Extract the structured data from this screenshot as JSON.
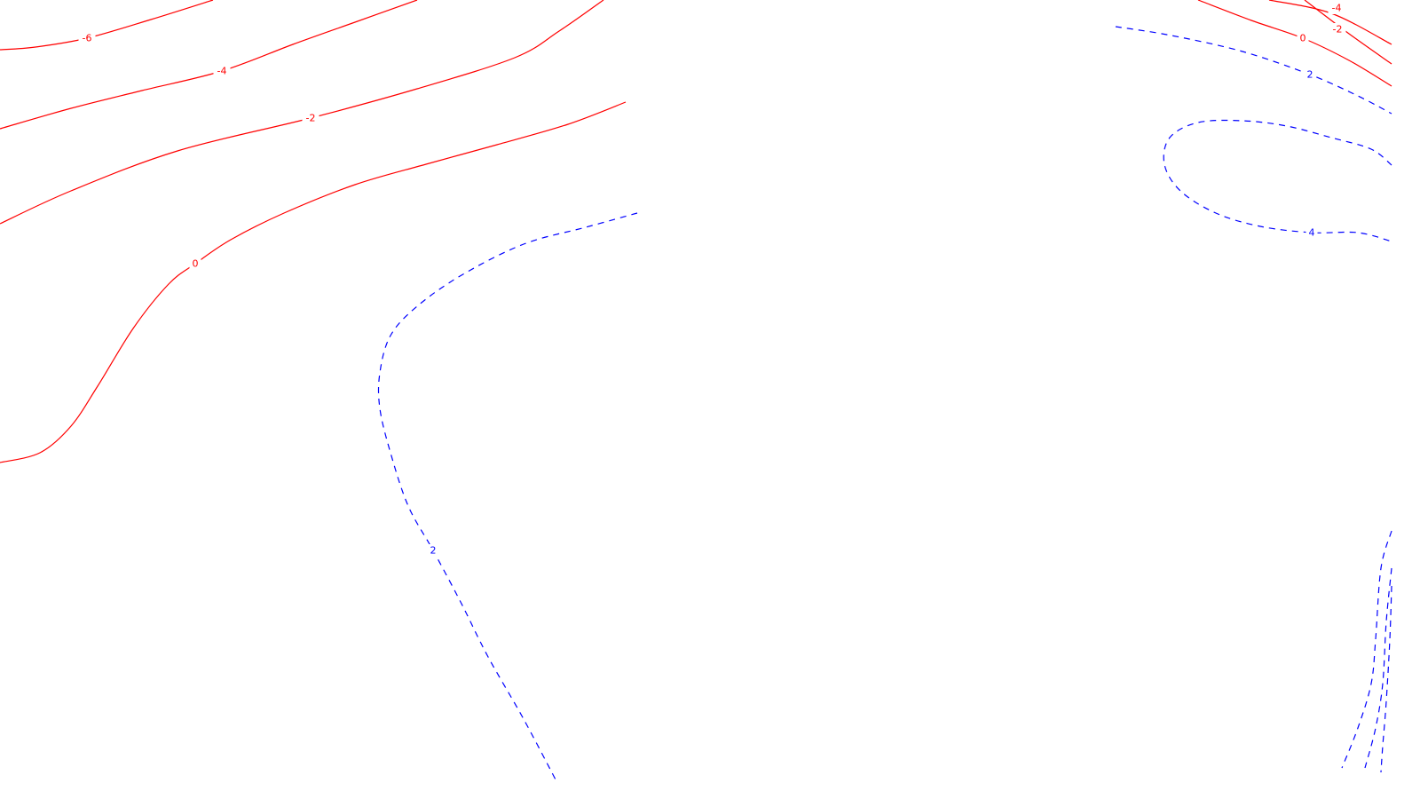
{
  "chart_data": {
    "type": "contour",
    "title": "",
    "xlabel": "",
    "ylabel": "",
    "grid": false,
    "legend": "none",
    "colors": {
      "negative_and_zero": "#ff0000",
      "positive": "#0000ff",
      "background": "#ffffff"
    },
    "line_styles": {
      "negative_and_zero": "solid",
      "positive": "dashed"
    },
    "levels": [
      {
        "level": -6,
        "color": "#ff0000",
        "style": "solid",
        "lines": [
          {
            "points": [
              [
                0,
                56
              ],
              [
                40,
                53
              ],
              [
                98,
                43
              ],
              [
                170,
                22
              ],
              [
                240,
                0
              ]
            ],
            "labels": [
              {
                "text": "-6",
                "at": [
                  98,
                  43
                ]
              }
            ]
          }
        ]
      },
      {
        "level": -4,
        "color": "#ff0000",
        "style": "solid",
        "lines": [
          {
            "points": [
              [
                0,
                145
              ],
              [
                80,
                122
              ],
              [
                160,
                102
              ],
              [
                250,
                80
              ],
              [
                330,
                50
              ],
              [
                400,
                25
              ],
              [
                470,
                0
              ]
            ],
            "labels": [
              {
                "text": "-4",
                "at": [
                  250,
                  80
                ]
              }
            ]
          },
          {
            "points": [
              [
                1430,
                0
              ],
              [
                1500,
                15
              ],
              [
                1568,
                50
              ]
            ],
            "labels": [
              {
                "text": "-4",
                "at": [
                  1506,
                  9
                ]
              }
            ]
          }
        ]
      },
      {
        "level": -2,
        "color": "#ff0000",
        "style": "solid",
        "lines": [
          {
            "points": [
              [
                0,
                252
              ],
              [
                80,
                215
              ],
              [
                200,
                170
              ],
              [
                350,
                133
              ],
              [
                470,
                100
              ],
              [
                580,
                65
              ],
              [
                630,
                35
              ],
              [
                680,
                0
              ]
            ],
            "labels": [
              {
                "text": "-2",
                "at": [
                  350,
                  133
                ]
              }
            ]
          },
          {
            "points": [
              [
                1470,
                0
              ],
              [
                1520,
                38
              ],
              [
                1568,
                72
              ]
            ],
            "labels": [
              {
                "text": "-2",
                "at": [
                  1507,
                  33
                ]
              }
            ]
          }
        ]
      },
      {
        "level": 0,
        "color": "#ff0000",
        "style": "solid",
        "lines": [
          {
            "points": [
              [
                0,
                521
              ],
              [
                45,
                510
              ],
              [
                80,
                480
              ],
              [
                110,
                435
              ],
              [
                150,
                370
              ],
              [
                190,
                320
              ],
              [
                220,
                297
              ],
              [
                260,
                270
              ],
              [
                320,
                240
              ],
              [
                400,
                208
              ],
              [
                480,
                185
              ],
              [
                560,
                163
              ],
              [
                640,
                140
              ],
              [
                705,
                115
              ]
            ],
            "labels": [
              {
                "text": "0",
                "at": [
                  220,
                  297
                ]
              }
            ]
          },
          {
            "points": [
              [
                1350,
                0
              ],
              [
                1410,
                23
              ],
              [
                1468,
                43
              ],
              [
                1520,
                68
              ],
              [
                1568,
                97
              ]
            ],
            "labels": [
              {
                "text": "0",
                "at": [
                  1468,
                  43
                ]
              }
            ]
          }
        ]
      },
      {
        "level": 2,
        "color": "#0000ff",
        "style": "dashed",
        "lines": [
          {
            "points": [
              [
                718,
                240
              ],
              [
                660,
                256
              ],
              [
                590,
                275
              ],
              [
                520,
                310
              ],
              [
                470,
                345
              ],
              [
                440,
                378
              ],
              [
                428,
                420
              ],
              [
                428,
                460
              ],
              [
                440,
                510
              ],
              [
                460,
                570
              ],
              [
                488,
                620
              ],
              [
                520,
                680
              ],
              [
                550,
                740
              ],
              [
                590,
                810
              ],
              [
                628,
                882
              ]
            ],
            "labels": [
              {
                "text": "2",
                "at": [
                  488,
                  620
                ]
              }
            ]
          },
          {
            "points": [
              [
                1257,
                30
              ],
              [
                1320,
                40
              ],
              [
                1400,
                58
              ],
              [
                1476,
                84
              ],
              [
                1530,
                108
              ],
              [
                1568,
                128
              ]
            ],
            "labels": [
              {
                "text": "2",
                "at": [
                  1476,
                  84
                ]
              }
            ]
          },
          {
            "points": [
              [
                1568,
                598
              ],
              [
                1556,
                640
              ],
              [
                1550,
                720
              ],
              [
                1545,
                770
              ],
              [
                1530,
                820
              ],
              [
                1512,
                865
              ]
            ],
            "labels": []
          }
        ]
      },
      {
        "level": 4,
        "color": "#0000ff",
        "style": "dashed",
        "lines": [
          {
            "points": [
              [
                1568,
                186
              ],
              [
                1545,
                168
              ],
              [
                1500,
                155
              ],
              [
                1450,
                142
              ],
              [
                1400,
                136
              ],
              [
                1350,
                138
              ],
              [
                1318,
                155
              ],
              [
                1312,
                185
              ],
              [
                1330,
                215
              ],
              [
                1370,
                240
              ],
              [
                1420,
                255
              ],
              [
                1478,
                262
              ],
              [
                1530,
                262
              ],
              [
                1568,
                272
              ]
            ],
            "labels": [
              {
                "text": "4",
                "at": [
                  1478,
                  262
                ]
              }
            ]
          },
          {
            "points": [
              [
                1568,
                640
              ],
              [
                1562,
                700
              ],
              [
                1558,
                770
              ],
              [
                1550,
                820
              ],
              [
                1538,
                865
              ]
            ],
            "labels": []
          }
        ]
      },
      {
        "level": 6,
        "color": "#0000ff",
        "style": "dashed",
        "lines": [
          {
            "points": [
              [
                1568,
                660
              ],
              [
                1566,
                720
              ],
              [
                1562,
                790
              ],
              [
                1558,
                840
              ],
              [
                1556,
                870
              ]
            ],
            "labels": []
          }
        ]
      }
    ]
  }
}
